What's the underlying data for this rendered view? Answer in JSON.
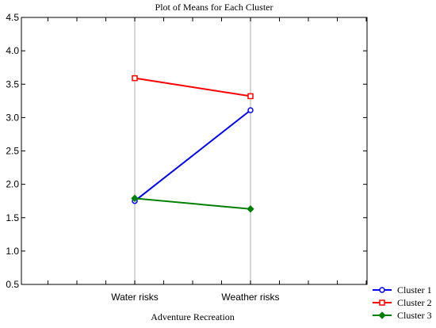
{
  "chart_data": {
    "type": "line",
    "title": "Plot of Means for Each Cluster",
    "xlabel": "Adventure Recreation",
    "ylabel": "",
    "categories": [
      "Water risks",
      "Weather risks"
    ],
    "ylim": [
      0.5,
      4.5
    ],
    "yticks": [
      "0.5",
      "1.0",
      "1.5",
      "2.0",
      "2.5",
      "3.0",
      "3.5",
      "4.0",
      "4.5"
    ],
    "grid": "vertical lines at categories",
    "legend_position": "bottom-right",
    "series": [
      {
        "name": "Cluster 1",
        "values": [
          1.75,
          3.11
        ],
        "color": "#0000ff",
        "marker": "circle"
      },
      {
        "name": "Cluster 2",
        "values": [
          3.59,
          3.32
        ],
        "color": "#ff0000",
        "marker": "square"
      },
      {
        "name": "Cluster 3",
        "values": [
          1.79,
          1.63
        ],
        "color": "#008000",
        "marker": "diamond"
      }
    ]
  }
}
